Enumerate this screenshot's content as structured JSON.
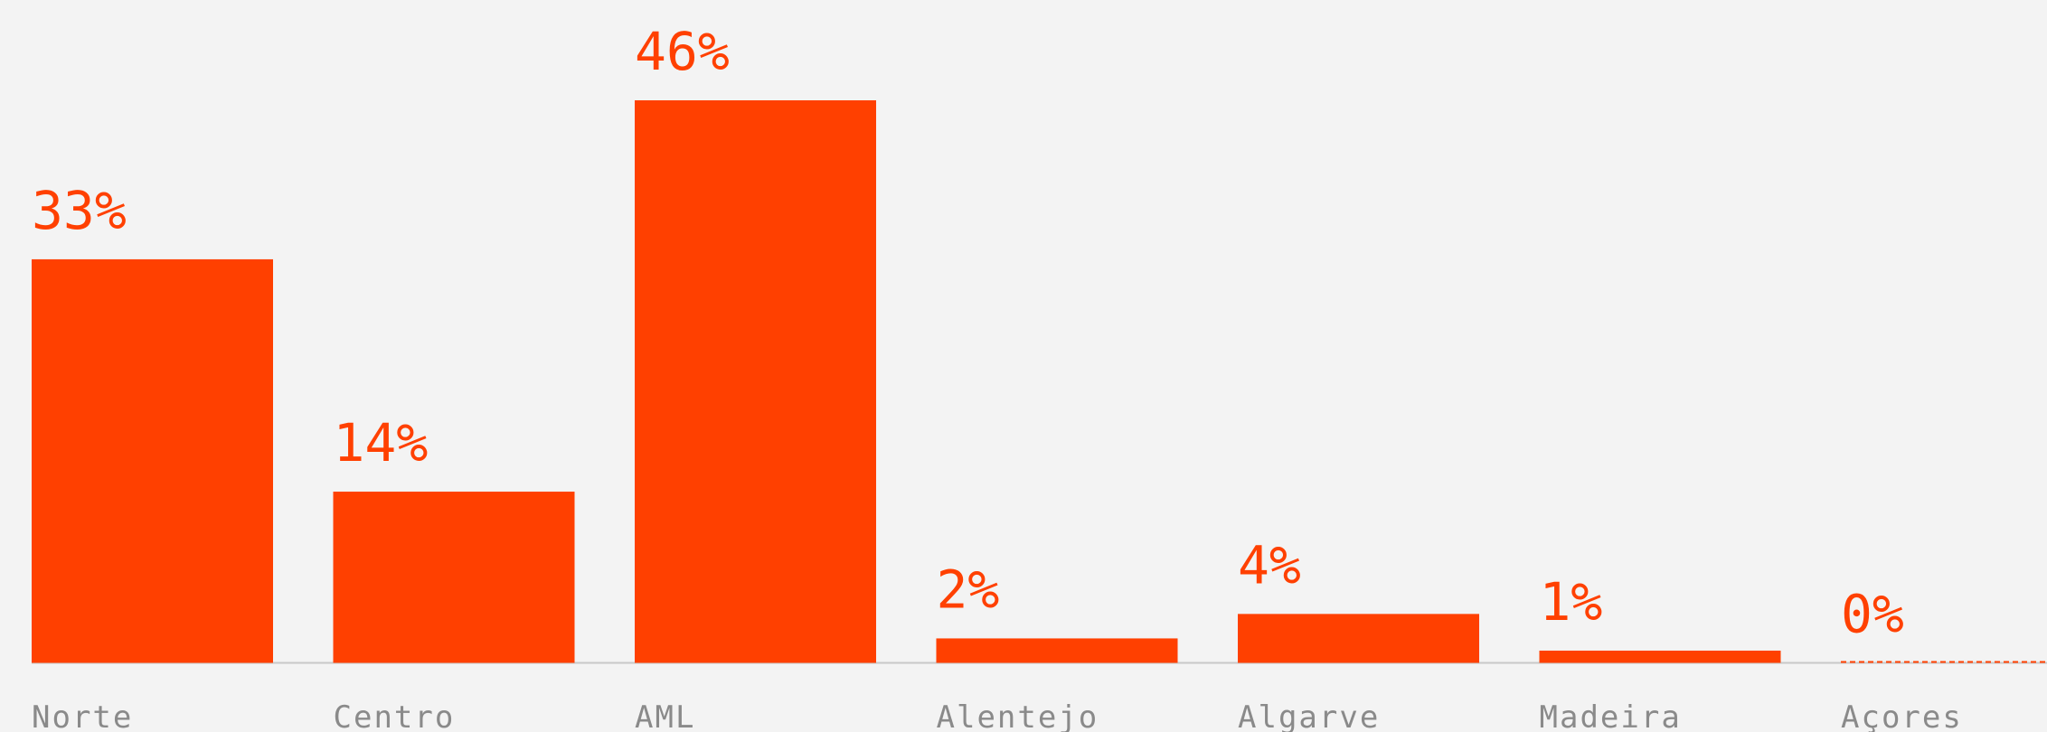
{
  "chart_data": {
    "type": "bar",
    "categories": [
      "Norte",
      "Centro",
      "AML",
      "Alentejo",
      "Algarve",
      "Madeira",
      "Açores"
    ],
    "values": [
      33,
      14,
      46,
      2,
      4,
      1,
      0
    ],
    "value_labels": [
      "33%",
      "14%",
      "46%",
      "2%",
      "4%",
      "1%",
      "0%"
    ],
    "color": "#ff4000"
  }
}
